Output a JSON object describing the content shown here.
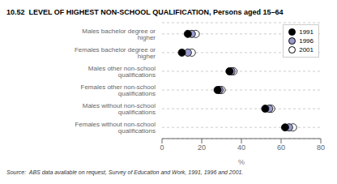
{
  "chart_data": {
    "type": "scatter",
    "title": "10.52  LEVEL OF HIGHEST NON-SCHOOL QUALIFICATION, Persons aged 15–64",
    "annotations": [
      "Source:  ABS data available on request, Survey of Education and Work, 1991, 1996 and 2001."
    ],
    "xlabel": "%",
    "categories": [
      "Males bachelor degree or higher",
      "Females bachelor degree or higher",
      "Males other non-school qualifications",
      "Females other non-school qualifications",
      "Males without non-school qualifications",
      "Females without non-school qualifications"
    ],
    "series": [
      {
        "name": "1991",
        "color": "#000000",
        "values": [
          13.0,
          10.0,
          34.0,
          28.0,
          52.0,
          62.0
        ]
      },
      {
        "name": "1996",
        "color": "#9999cc",
        "values": [
          15.0,
          13.0,
          35.0,
          29.0,
          54.0,
          64.0
        ]
      },
      {
        "name": "2001",
        "color": "#ffffff",
        "values": [
          17.0,
          15.0,
          36.0,
          30.0,
          55.0,
          66.0
        ]
      }
    ],
    "xlim": [
      0,
      80
    ],
    "xticks": [
      0,
      20,
      40,
      60,
      80
    ],
    "grid": true,
    "legend": "upper right",
    "marker": "circle"
  }
}
